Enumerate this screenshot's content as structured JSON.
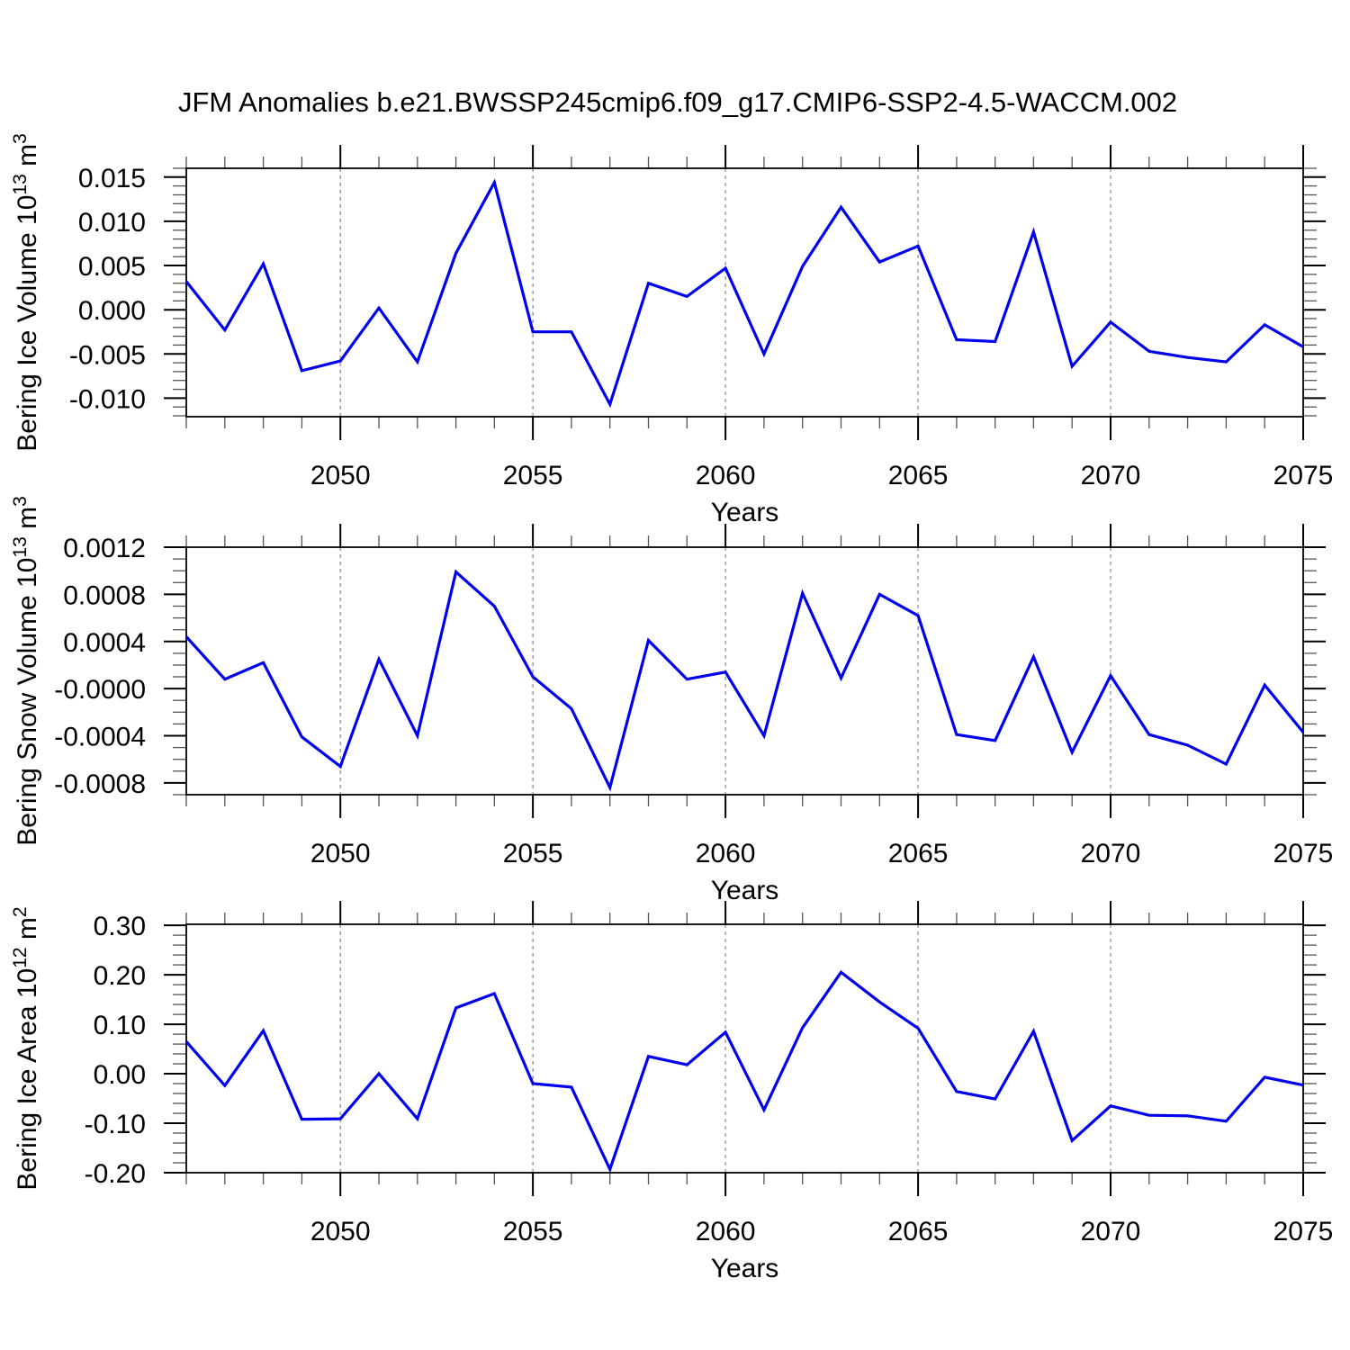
{
  "title": "JFM Anomalies b.e21.BWSSP245cmip6.f09_g17.CMIP6-SSP2-4.5-WACCM.002",
  "accent_line_color": "#0000EE",
  "chart_data": [
    {
      "type": "line",
      "name": "bering-ice-volume",
      "ylabel_plain": "Bering Ice Volume 10^13 m^3",
      "ylabel_parts": [
        [
          "Bering Ice Volume 10",
          false
        ],
        [
          "13",
          true
        ],
        [
          " m",
          false
        ],
        [
          "3",
          true
        ]
      ],
      "xlabel": "Years",
      "xlim": [
        2046,
        2075
      ],
      "ylim": [
        -0.0121,
        0.016
      ],
      "x_major_ticks": [
        2050,
        2055,
        2060,
        2065,
        2070,
        2075
      ],
      "x_grid": [
        2050,
        2055,
        2060,
        2065,
        2070
      ],
      "x_minor_step": 1,
      "grid_dashed": true,
      "yticks": [
        {
          "label": "0.015",
          "value": 0.015
        },
        {
          "label": "0.010",
          "value": 0.01
        },
        {
          "label": "0.005",
          "value": 0.005
        },
        {
          "label": "0.000",
          "value": 0.0
        },
        {
          "label": "-0.005",
          "value": -0.005
        },
        {
          "label": "-0.010",
          "value": -0.01
        }
      ],
      "y_minor_step": 0.001,
      "line_color": "#0000EE",
      "x": [
        2046,
        2047,
        2048,
        2049,
        2050,
        2051,
        2052,
        2053,
        2054,
        2055,
        2056,
        2057,
        2058,
        2059,
        2060,
        2061,
        2062,
        2063,
        2064,
        2065,
        2066,
        2067,
        2068,
        2069,
        2070,
        2071,
        2072,
        2073,
        2074,
        2075
      ],
      "values": [
        0.0032,
        -0.0023,
        0.0052,
        -0.0069,
        -0.0058,
        0.0002,
        -0.0059,
        0.0064,
        0.0144,
        -0.0025,
        -0.0025,
        -0.0107,
        0.003,
        0.0015,
        0.0047,
        -0.005,
        0.0049,
        0.0116,
        0.0054,
        0.0072,
        -0.0034,
        -0.0036,
        0.0088,
        -0.0064,
        -0.0014,
        -0.0047,
        -0.0054,
        -0.0059,
        -0.0017,
        -0.0042
      ]
    },
    {
      "type": "line",
      "name": "bering-snow-volume",
      "ylabel_plain": "Bering Snow Volume 10^13 m^3",
      "ylabel_parts": [
        [
          "Bering Snow Volume 10",
          false
        ],
        [
          "13",
          true
        ],
        [
          " m",
          false
        ],
        [
          "3",
          true
        ]
      ],
      "xlabel": "Years",
      "xlim": [
        2046,
        2075
      ],
      "ylim": [
        -0.0009,
        0.0012
      ],
      "x_major_ticks": [
        2050,
        2055,
        2060,
        2065,
        2070,
        2075
      ],
      "x_grid": [
        2050,
        2055,
        2060,
        2065,
        2070
      ],
      "x_minor_step": 1,
      "grid_dashed": true,
      "yticks": [
        {
          "label": "0.0012",
          "value": 0.0012
        },
        {
          "label": "0.0008",
          "value": 0.0008
        },
        {
          "label": "0.0004",
          "value": 0.0004
        },
        {
          "label": "-0.0000",
          "value": 0.0
        },
        {
          "label": "-0.0004",
          "value": -0.0004
        },
        {
          "label": "-0.0008",
          "value": -0.0008
        }
      ],
      "y_minor_step": 0.0001,
      "line_color": "#0000EE",
      "x": [
        2046,
        2047,
        2048,
        2049,
        2050,
        2051,
        2052,
        2053,
        2054,
        2055,
        2056,
        2057,
        2058,
        2059,
        2060,
        2061,
        2062,
        2063,
        2064,
        2065,
        2066,
        2067,
        2068,
        2069,
        2070,
        2071,
        2072,
        2073,
        2074,
        2075
      ],
      "values": [
        0.00044,
        8e-05,
        0.00022,
        -0.00041,
        -0.00066,
        0.00025,
        -0.0004,
        0.00099,
        0.0007,
        0.0001,
        -0.00017,
        -0.00084,
        0.00041,
        8e-05,
        0.00014,
        -0.0004,
        0.00081,
        9e-05,
        0.0008,
        0.00062,
        -0.00039,
        -0.00044,
        0.00027,
        -0.00054,
        0.00011,
        -0.00039,
        -0.00048,
        -0.00064,
        3e-05,
        -0.00037
      ]
    },
    {
      "type": "line",
      "name": "bering-ice-area",
      "ylabel_plain": "Bering Ice Area 10^12 m^2",
      "ylabel_parts": [
        [
          "Bering Ice Area 10",
          false
        ],
        [
          "12",
          true
        ],
        [
          " m",
          false
        ],
        [
          "2",
          true
        ]
      ],
      "xlabel": "Years",
      "xlim": [
        2046,
        2075
      ],
      "ylim": [
        -0.2,
        0.302
      ],
      "x_major_ticks": [
        2050,
        2055,
        2060,
        2065,
        2070,
        2075
      ],
      "x_grid": [
        2050,
        2055,
        2060,
        2065,
        2070
      ],
      "x_minor_step": 1,
      "grid_dashed": true,
      "yticks": [
        {
          "label": "0.30",
          "value": 0.3
        },
        {
          "label": "0.20",
          "value": 0.2
        },
        {
          "label": "0.10",
          "value": 0.1
        },
        {
          "label": "0.00",
          "value": 0.0
        },
        {
          "label": "-0.10",
          "value": -0.1
        },
        {
          "label": "-0.20",
          "value": -0.2
        }
      ],
      "y_minor_step": 0.02,
      "line_color": "#0000EE",
      "x": [
        2046,
        2047,
        2048,
        2049,
        2050,
        2051,
        2052,
        2053,
        2054,
        2055,
        2056,
        2057,
        2058,
        2059,
        2060,
        2061,
        2062,
        2063,
        2064,
        2065,
        2066,
        2067,
        2068,
        2069,
        2070,
        2071,
        2072,
        2073,
        2074,
        2075
      ],
      "values": [
        0.065,
        -0.024,
        0.087,
        -0.092,
        -0.091,
        0.0,
        -0.091,
        0.133,
        0.162,
        -0.02,
        -0.027,
        -0.193,
        0.035,
        0.018,
        0.084,
        -0.073,
        0.093,
        0.205,
        0.145,
        0.092,
        -0.036,
        -0.051,
        0.086,
        -0.135,
        -0.065,
        -0.084,
        -0.085,
        -0.096,
        -0.007,
        -0.023
      ]
    }
  ]
}
